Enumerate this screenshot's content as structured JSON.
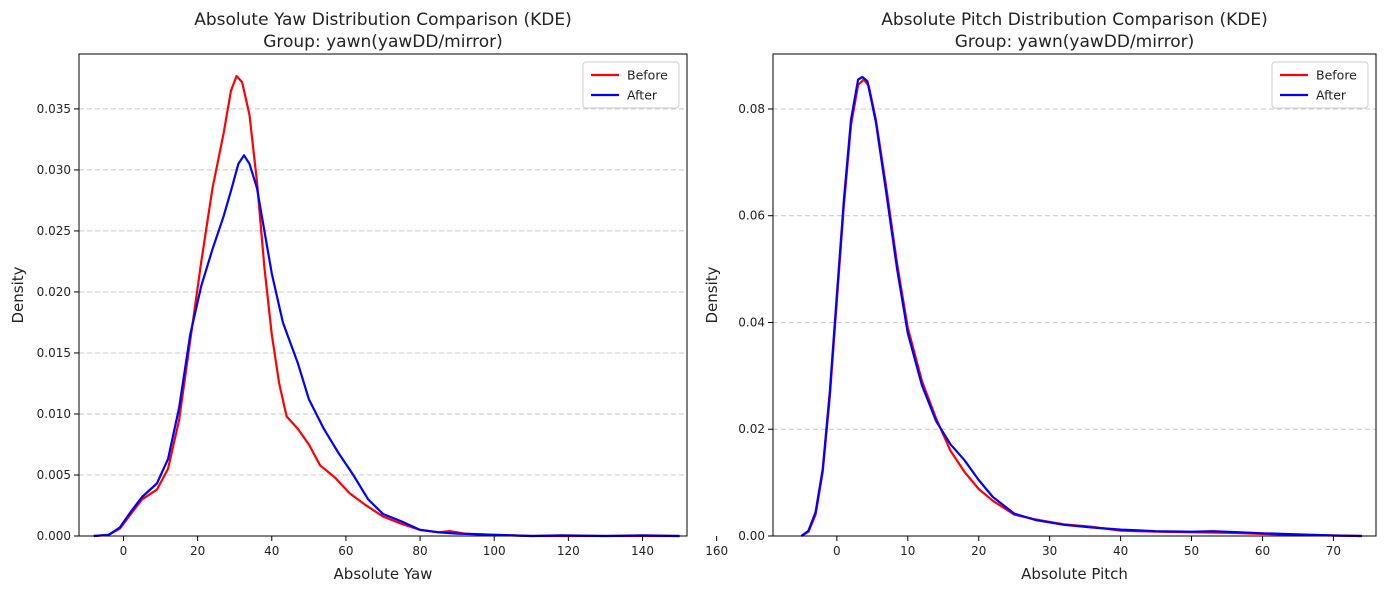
{
  "chart_data": [
    {
      "type": "line",
      "title": "Absolute Yaw Distribution Comparison (KDE)",
      "subtitle": "Group: yawn(yawDD/mirror)",
      "xlabel": "Absolute Yaw",
      "ylabel": "Density",
      "xlim": [
        -12,
        152
      ],
      "ylim": [
        0,
        0.0395
      ],
      "xticks": [
        0,
        20,
        40,
        60,
        80,
        100,
        120,
        140,
        160
      ],
      "xtick_labels": [
        "0",
        "20",
        "40",
        "60",
        "80",
        "100",
        "120",
        "140",
        "160"
      ],
      "yticks": [
        0,
        0.005,
        0.01,
        0.015,
        0.02,
        0.025,
        0.03,
        0.035
      ],
      "ytick_labels": [
        "0.000",
        "0.005",
        "0.010",
        "0.015",
        "0.020",
        "0.025",
        "0.030",
        "0.035"
      ],
      "grid": "y-dashed",
      "legend_position": "top-right",
      "series": [
        {
          "name": "Before",
          "color": "#ff0000",
          "points": [
            [
              -8,
              0
            ],
            [
              -4,
              0.0001
            ],
            [
              -1,
              0.0006
            ],
            [
              2,
              0.0018
            ],
            [
              5,
              0.003
            ],
            [
              9,
              0.0038
            ],
            [
              12,
              0.0055
            ],
            [
              15,
              0.0095
            ],
            [
              18,
              0.016
            ],
            [
              21,
              0.0225
            ],
            [
              24,
              0.0285
            ],
            [
              27,
              0.033
            ],
            [
              29,
              0.0365
            ],
            [
              30.5,
              0.0377
            ],
            [
              32,
              0.0372
            ],
            [
              34,
              0.0345
            ],
            [
              36,
              0.029
            ],
            [
              38,
              0.022
            ],
            [
              40,
              0.0165
            ],
            [
              42,
              0.0125
            ],
            [
              44,
              0.0098
            ],
            [
              47,
              0.0088
            ],
            [
              50,
              0.0075
            ],
            [
              53,
              0.0058
            ],
            [
              57,
              0.0048
            ],
            [
              61,
              0.0035
            ],
            [
              65,
              0.0026
            ],
            [
              70,
              0.0016
            ],
            [
              75,
              0.001
            ],
            [
              80,
              0.0005
            ],
            [
              85,
              0.0003
            ],
            [
              88,
              0.0004
            ],
            [
              92,
              0.0002
            ],
            [
              100,
              0.0001
            ],
            [
              110,
              0
            ],
            [
              130,
              0
            ],
            [
              150,
              0
            ]
          ]
        },
        {
          "name": "After",
          "color": "#0000ff",
          "points": [
            [
              -8,
              0
            ],
            [
              -4,
              0.0001
            ],
            [
              -1,
              0.0007
            ],
            [
              2,
              0.002
            ],
            [
              5,
              0.0032
            ],
            [
              9,
              0.0043
            ],
            [
              12,
              0.0063
            ],
            [
              15,
              0.0105
            ],
            [
              18,
              0.0165
            ],
            [
              21,
              0.0205
            ],
            [
              24,
              0.0235
            ],
            [
              27,
              0.0262
            ],
            [
              29,
              0.0283
            ],
            [
              31,
              0.0305
            ],
            [
              32.5,
              0.0312
            ],
            [
              34,
              0.0305
            ],
            [
              36,
              0.0285
            ],
            [
              38,
              0.025
            ],
            [
              40,
              0.0215
            ],
            [
              43,
              0.0175
            ],
            [
              47,
              0.0142
            ],
            [
              50,
              0.0112
            ],
            [
              54,
              0.0088
            ],
            [
              58,
              0.0068
            ],
            [
              62,
              0.005
            ],
            [
              66,
              0.003
            ],
            [
              70,
              0.0018
            ],
            [
              75,
              0.0012
            ],
            [
              80,
              0.0005
            ],
            [
              85,
              0.0003
            ],
            [
              90,
              0.0002
            ],
            [
              100,
              0.0001
            ],
            [
              110,
              0
            ],
            [
              118,
              5e-05
            ],
            [
              130,
              0
            ],
            [
              140,
              5e-05
            ],
            [
              150,
              0
            ]
          ]
        }
      ]
    },
    {
      "type": "line",
      "title": "Absolute Pitch Distribution Comparison (KDE)",
      "subtitle": "Group: yawn(yawDD/mirror)",
      "xlabel": "Absolute Pitch",
      "ylabel": "Density",
      "xlim": [
        -9,
        76
      ],
      "ylim": [
        0,
        0.0903
      ],
      "xticks": [
        0,
        10,
        20,
        30,
        40,
        50,
        60,
        70
      ],
      "xtick_labels": [
        "0",
        "10",
        "20",
        "30",
        "40",
        "50",
        "60",
        "70"
      ],
      "yticks": [
        0,
        0.02,
        0.04,
        0.06,
        0.08
      ],
      "ytick_labels": [
        "0.00",
        "0.02",
        "0.04",
        "0.06",
        "0.08"
      ],
      "grid": "y-dashed",
      "legend_position": "top-right",
      "series": [
        {
          "name": "Before",
          "color": "#ff0000",
          "points": [
            [
              -5,
              0
            ],
            [
              -4,
              0.0008
            ],
            [
              -3,
              0.004
            ],
            [
              -2,
              0.012
            ],
            [
              -1,
              0.026
            ],
            [
              0,
              0.044
            ],
            [
              1,
              0.062
            ],
            [
              2,
              0.077
            ],
            [
              3,
              0.0845
            ],
            [
              3.8,
              0.0855
            ],
            [
              4.5,
              0.0843
            ],
            [
              5.5,
              0.078
            ],
            [
              7,
              0.065
            ],
            [
              8.5,
              0.051
            ],
            [
              10,
              0.039
            ],
            [
              12,
              0.029
            ],
            [
              14,
              0.022
            ],
            [
              16,
              0.016
            ],
            [
              18,
              0.012
            ],
            [
              20,
              0.0088
            ],
            [
              22,
              0.0066
            ],
            [
              25,
              0.004
            ],
            [
              28,
              0.0031
            ],
            [
              32,
              0.0022
            ],
            [
              36,
              0.0017
            ],
            [
              40,
              0.001
            ],
            [
              45,
              0.0008
            ],
            [
              50,
              0.0007
            ],
            [
              55,
              0.0006
            ],
            [
              60,
              0.0004
            ],
            [
              65,
              0.0002
            ],
            [
              70,
              0.0001
            ],
            [
              74,
              0
            ]
          ]
        },
        {
          "name": "After",
          "color": "#0000ff",
          "points": [
            [
              -5,
              0
            ],
            [
              -4,
              0.001
            ],
            [
              -3,
              0.0045
            ],
            [
              -2,
              0.0125
            ],
            [
              -1,
              0.027
            ],
            [
              0,
              0.045
            ],
            [
              1,
              0.063
            ],
            [
              2,
              0.078
            ],
            [
              3,
              0.0855
            ],
            [
              3.6,
              0.086
            ],
            [
              4.3,
              0.0852
            ],
            [
              5.5,
              0.0775
            ],
            [
              7,
              0.064
            ],
            [
              8.5,
              0.05
            ],
            [
              10,
              0.038
            ],
            [
              12,
              0.0282
            ],
            [
              14,
              0.0215
            ],
            [
              16,
              0.0172
            ],
            [
              18,
              0.0142
            ],
            [
              20,
              0.0105
            ],
            [
              22,
              0.0073
            ],
            [
              25,
              0.0042
            ],
            [
              28,
              0.003
            ],
            [
              32,
              0.0021
            ],
            [
              36,
              0.0016
            ],
            [
              40,
              0.0012
            ],
            [
              45,
              0.0009
            ],
            [
              50,
              0.0008
            ],
            [
              53,
              0.0009
            ],
            [
              57,
              0.0007
            ],
            [
              60,
              0.0005
            ],
            [
              65,
              0.0003
            ],
            [
              70,
              0.0001
            ],
            [
              74,
              0
            ]
          ]
        }
      ]
    }
  ]
}
